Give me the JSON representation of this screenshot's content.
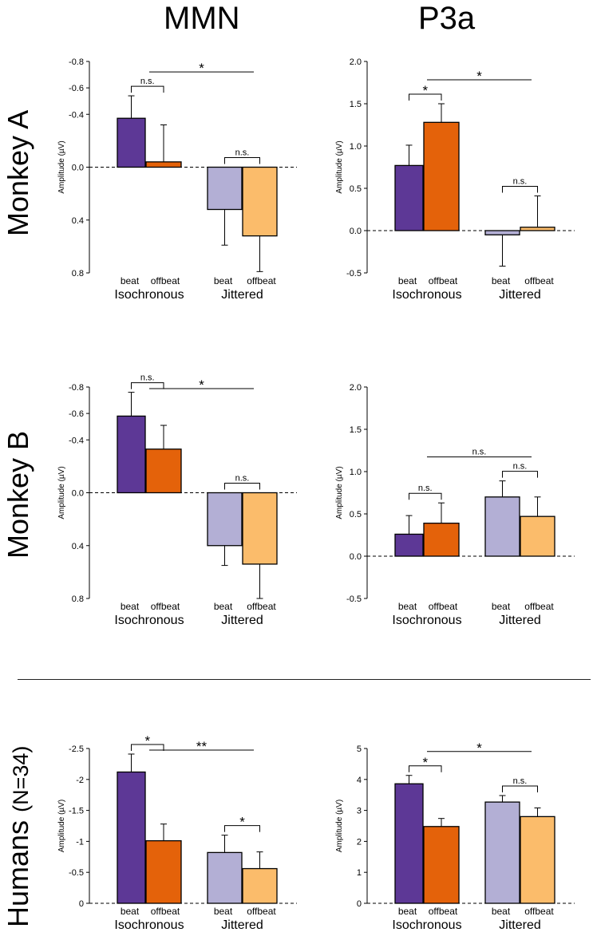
{
  "column_titles": {
    "mmn": "MMN",
    "p3a": "P3a"
  },
  "row_labels": {
    "monkey_a": "Monkey A",
    "monkey_b": "Monkey B",
    "humans_main": "Humans",
    "humans_n": "(N=34)"
  },
  "colors": {
    "iso_beat": "#5d3896",
    "iso_offbeat": "#e4620a",
    "jit_beat": "#b3afd5",
    "jit_offbeat": "#fbbc6b"
  },
  "chart_data": [
    {
      "id": "monkeyA_mmn",
      "type": "bar",
      "title": "MMN",
      "row": "Monkey A",
      "ylabel": "Amplitude (µV)",
      "ylim": [
        0.8,
        -0.8
      ],
      "axis_direction": "inverted (negative up)",
      "yticks": [
        -0.8,
        -0.6,
        -0.4,
        0.0,
        0.4,
        0.8
      ],
      "ytick_labels": [
        "-0.8",
        "-0.6",
        "-0.4",
        "0.0",
        "0.4",
        "0.8"
      ],
      "bars": [
        {
          "group": "Isochronous",
          "condition": "beat",
          "value": -0.37,
          "error": 0.17
        },
        {
          "group": "Isochronous",
          "condition": "offbeat",
          "value": -0.04,
          "error": 0.28
        },
        {
          "group": "Jittered",
          "condition": "beat",
          "value": 0.32,
          "error": 0.27
        },
        {
          "group": "Jittered",
          "condition": "offbeat",
          "value": 0.52,
          "error": 0.27
        }
      ],
      "significance": [
        {
          "label": "n.s.",
          "between": [
            0,
            1
          ]
        },
        {
          "label": "n.s.",
          "between": [
            2,
            3
          ]
        },
        {
          "label": "*",
          "between": [
            "Isochronous",
            "Jittered"
          ]
        }
      ]
    },
    {
      "id": "monkeyA_p3a",
      "type": "bar",
      "title": "P3a",
      "row": "Monkey A",
      "ylabel": "Amplitude (µV)",
      "ylim": [
        -0.5,
        2.0
      ],
      "yticks": [
        -0.5,
        0.0,
        0.5,
        1.0,
        1.5,
        2.0
      ],
      "ytick_labels": [
        "-0.5",
        "0.0",
        "0.5",
        "1.0",
        "1.5",
        "2.0"
      ],
      "bars": [
        {
          "group": "Isochronous",
          "condition": "beat",
          "value": 0.77,
          "error": 0.24
        },
        {
          "group": "Isochronous",
          "condition": "offbeat",
          "value": 1.28,
          "error": 0.22
        },
        {
          "group": "Jittered",
          "condition": "beat",
          "value": -0.05,
          "error": 0.37
        },
        {
          "group": "Jittered",
          "condition": "offbeat",
          "value": 0.04,
          "error": 0.37
        }
      ],
      "significance": [
        {
          "label": "*",
          "between": [
            0,
            1
          ]
        },
        {
          "label": "n.s.",
          "between": [
            2,
            3
          ]
        },
        {
          "label": "*",
          "between": [
            "Isochronous",
            "Jittered"
          ]
        }
      ]
    },
    {
      "id": "monkeyB_mmn",
      "type": "bar",
      "title": "MMN",
      "row": "Monkey B",
      "ylabel": "Amplitude (µV)",
      "ylim": [
        0.8,
        -0.8
      ],
      "axis_direction": "inverted (negative up)",
      "yticks": [
        -0.8,
        -0.6,
        -0.4,
        0.0,
        0.4,
        0.8
      ],
      "ytick_labels": [
        "-0.8",
        "-0.6",
        "-0.4",
        "0.0",
        "0.4",
        "0.8"
      ],
      "bars": [
        {
          "group": "Isochronous",
          "condition": "beat",
          "value": -0.58,
          "error": 0.18
        },
        {
          "group": "Isochronous",
          "condition": "offbeat",
          "value": -0.33,
          "error": 0.18
        },
        {
          "group": "Jittered",
          "condition": "beat",
          "value": 0.4,
          "error": 0.15
        },
        {
          "group": "Jittered",
          "condition": "offbeat",
          "value": 0.54,
          "error": 0.26
        }
      ],
      "significance": [
        {
          "label": "n.s.",
          "between": [
            0,
            1
          ]
        },
        {
          "label": "n.s.",
          "between": [
            2,
            3
          ]
        },
        {
          "label": "*",
          "between": [
            "Isochronous",
            "Jittered"
          ]
        }
      ]
    },
    {
      "id": "monkeyB_p3a",
      "type": "bar",
      "title": "P3a",
      "row": "Monkey B",
      "ylabel": "Amplitude (µV)",
      "ylim": [
        -0.5,
        2.0
      ],
      "yticks": [
        -0.5,
        0.0,
        0.5,
        1.0,
        1.5,
        2.0
      ],
      "ytick_labels": [
        "-0.5",
        "0.0",
        "0.5",
        "1.0",
        "1.5",
        "2.0"
      ],
      "bars": [
        {
          "group": "Isochronous",
          "condition": "beat",
          "value": 0.26,
          "error": 0.22
        },
        {
          "group": "Isochronous",
          "condition": "offbeat",
          "value": 0.39,
          "error": 0.24
        },
        {
          "group": "Jittered",
          "condition": "beat",
          "value": 0.7,
          "error": 0.19
        },
        {
          "group": "Jittered",
          "condition": "offbeat",
          "value": 0.47,
          "error": 0.23
        }
      ],
      "significance": [
        {
          "label": "n.s.",
          "between": [
            0,
            1
          ]
        },
        {
          "label": "n.s.",
          "between": [
            2,
            3
          ]
        },
        {
          "label": "n.s.",
          "between": [
            "Isochronous",
            "Jittered"
          ]
        }
      ]
    },
    {
      "id": "humans_mmn",
      "type": "bar",
      "title": "MMN",
      "row": "Humans (N=34)",
      "ylabel": "Amplitude (µV)",
      "ylim": [
        0,
        -2.5
      ],
      "axis_direction": "inverted (negative up)",
      "yticks": [
        -2.5,
        -2,
        -1.5,
        -1,
        -0.5,
        0
      ],
      "ytick_labels": [
        "-2.5",
        "-2",
        "-1.5",
        "-1",
        "-0.5",
        "0"
      ],
      "bars": [
        {
          "group": "Isochronous",
          "condition": "beat",
          "value": -2.12,
          "error": 0.29
        },
        {
          "group": "Isochronous",
          "condition": "offbeat",
          "value": -1.01,
          "error": 0.27
        },
        {
          "group": "Jittered",
          "condition": "beat",
          "value": -0.82,
          "error": 0.28
        },
        {
          "group": "Jittered",
          "condition": "offbeat",
          "value": -0.56,
          "error": 0.27
        }
      ],
      "significance": [
        {
          "label": "*",
          "between": [
            0,
            1
          ]
        },
        {
          "label": "*",
          "between": [
            2,
            3
          ]
        },
        {
          "label": "**",
          "between": [
            "Isochronous",
            "Jittered"
          ]
        }
      ]
    },
    {
      "id": "humans_p3a",
      "type": "bar",
      "title": "P3a",
      "row": "Humans (N=34)",
      "ylabel": "Amplitude (µV)",
      "ylim": [
        0,
        5
      ],
      "yticks": [
        0,
        1,
        2,
        3,
        4,
        5
      ],
      "ytick_labels": [
        "0",
        "1",
        "2",
        "3",
        "4",
        "5"
      ],
      "bars": [
        {
          "group": "Isochronous",
          "condition": "beat",
          "value": 3.86,
          "error": 0.27
        },
        {
          "group": "Isochronous",
          "condition": "offbeat",
          "value": 2.48,
          "error": 0.26
        },
        {
          "group": "Jittered",
          "condition": "beat",
          "value": 3.27,
          "error": 0.21
        },
        {
          "group": "Jittered",
          "condition": "offbeat",
          "value": 2.8,
          "error": 0.28
        }
      ],
      "significance": [
        {
          "label": "*",
          "between": [
            0,
            1
          ]
        },
        {
          "label": "n.s.",
          "between": [
            2,
            3
          ]
        },
        {
          "label": "*",
          "between": [
            "Isochronous",
            "Jittered"
          ]
        }
      ]
    }
  ]
}
